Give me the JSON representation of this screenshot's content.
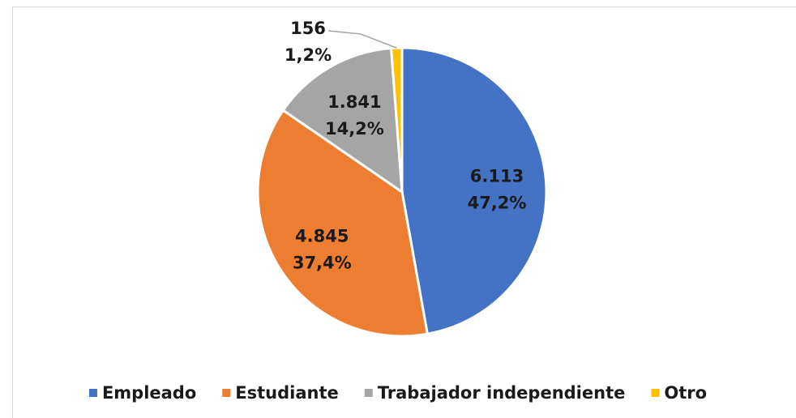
{
  "chart_data": {
    "type": "pie",
    "categories": [
      "Empleado",
      "Estudiante",
      "Trabajador independiente",
      "Otro"
    ],
    "values": [
      6113,
      4845,
      1841,
      156
    ],
    "value_labels": [
      "6.113",
      "4.845",
      "1.841",
      "156"
    ],
    "percentages": [
      47.2,
      37.4,
      14.2,
      1.2
    ],
    "percentage_labels": [
      "47,2%",
      "37,4%",
      "14,2%",
      "1,2%"
    ],
    "colors": [
      "#4472c4",
      "#ed7d31",
      "#a5a5a5",
      "#ffc000"
    ],
    "legend": "bottom"
  }
}
